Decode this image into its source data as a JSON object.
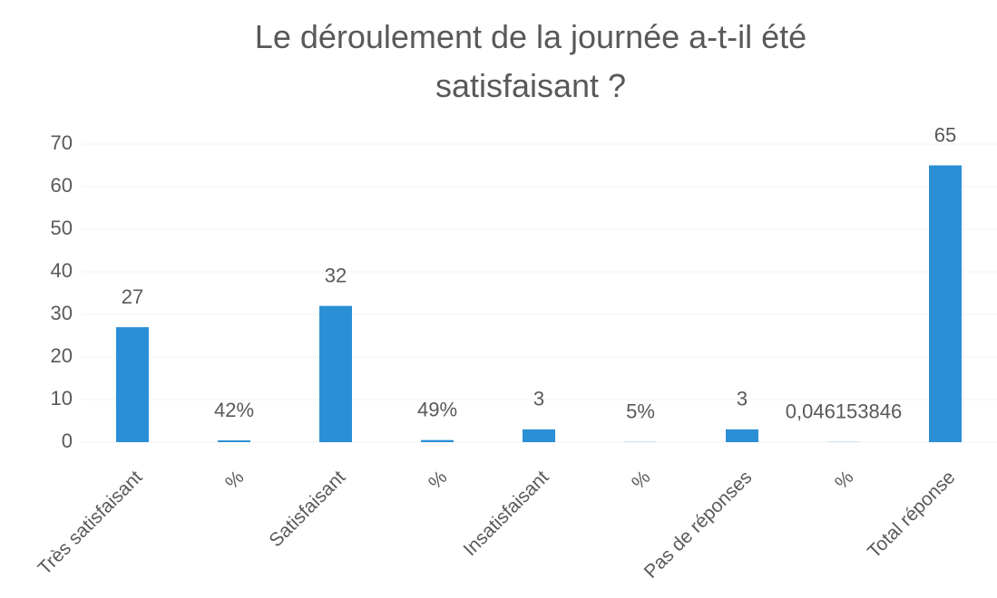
{
  "chart_data": {
    "type": "bar",
    "title": "Le déroulement de la journée a-t-il été satisfaisant ?",
    "categories": [
      "Très satisfaisant",
      "%",
      "Satisfaisant",
      "%",
      "Insatisfaisant",
      "%",
      "Pas de réponses",
      "%",
      "Total réponse"
    ],
    "values": [
      27,
      0.4154,
      32,
      0.4923,
      3,
      0.0462,
      3,
      0.046153846,
      65
    ],
    "value_labels": [
      "27",
      "42%",
      "32",
      "49%",
      "3",
      "5%",
      "3",
      "0,046153846",
      "65"
    ],
    "color": "#2b8fd6",
    "ylim": [
      0,
      70
    ],
    "yticks": [
      0,
      10,
      20,
      30,
      40,
      50,
      60,
      70
    ],
    "grid": true
  }
}
